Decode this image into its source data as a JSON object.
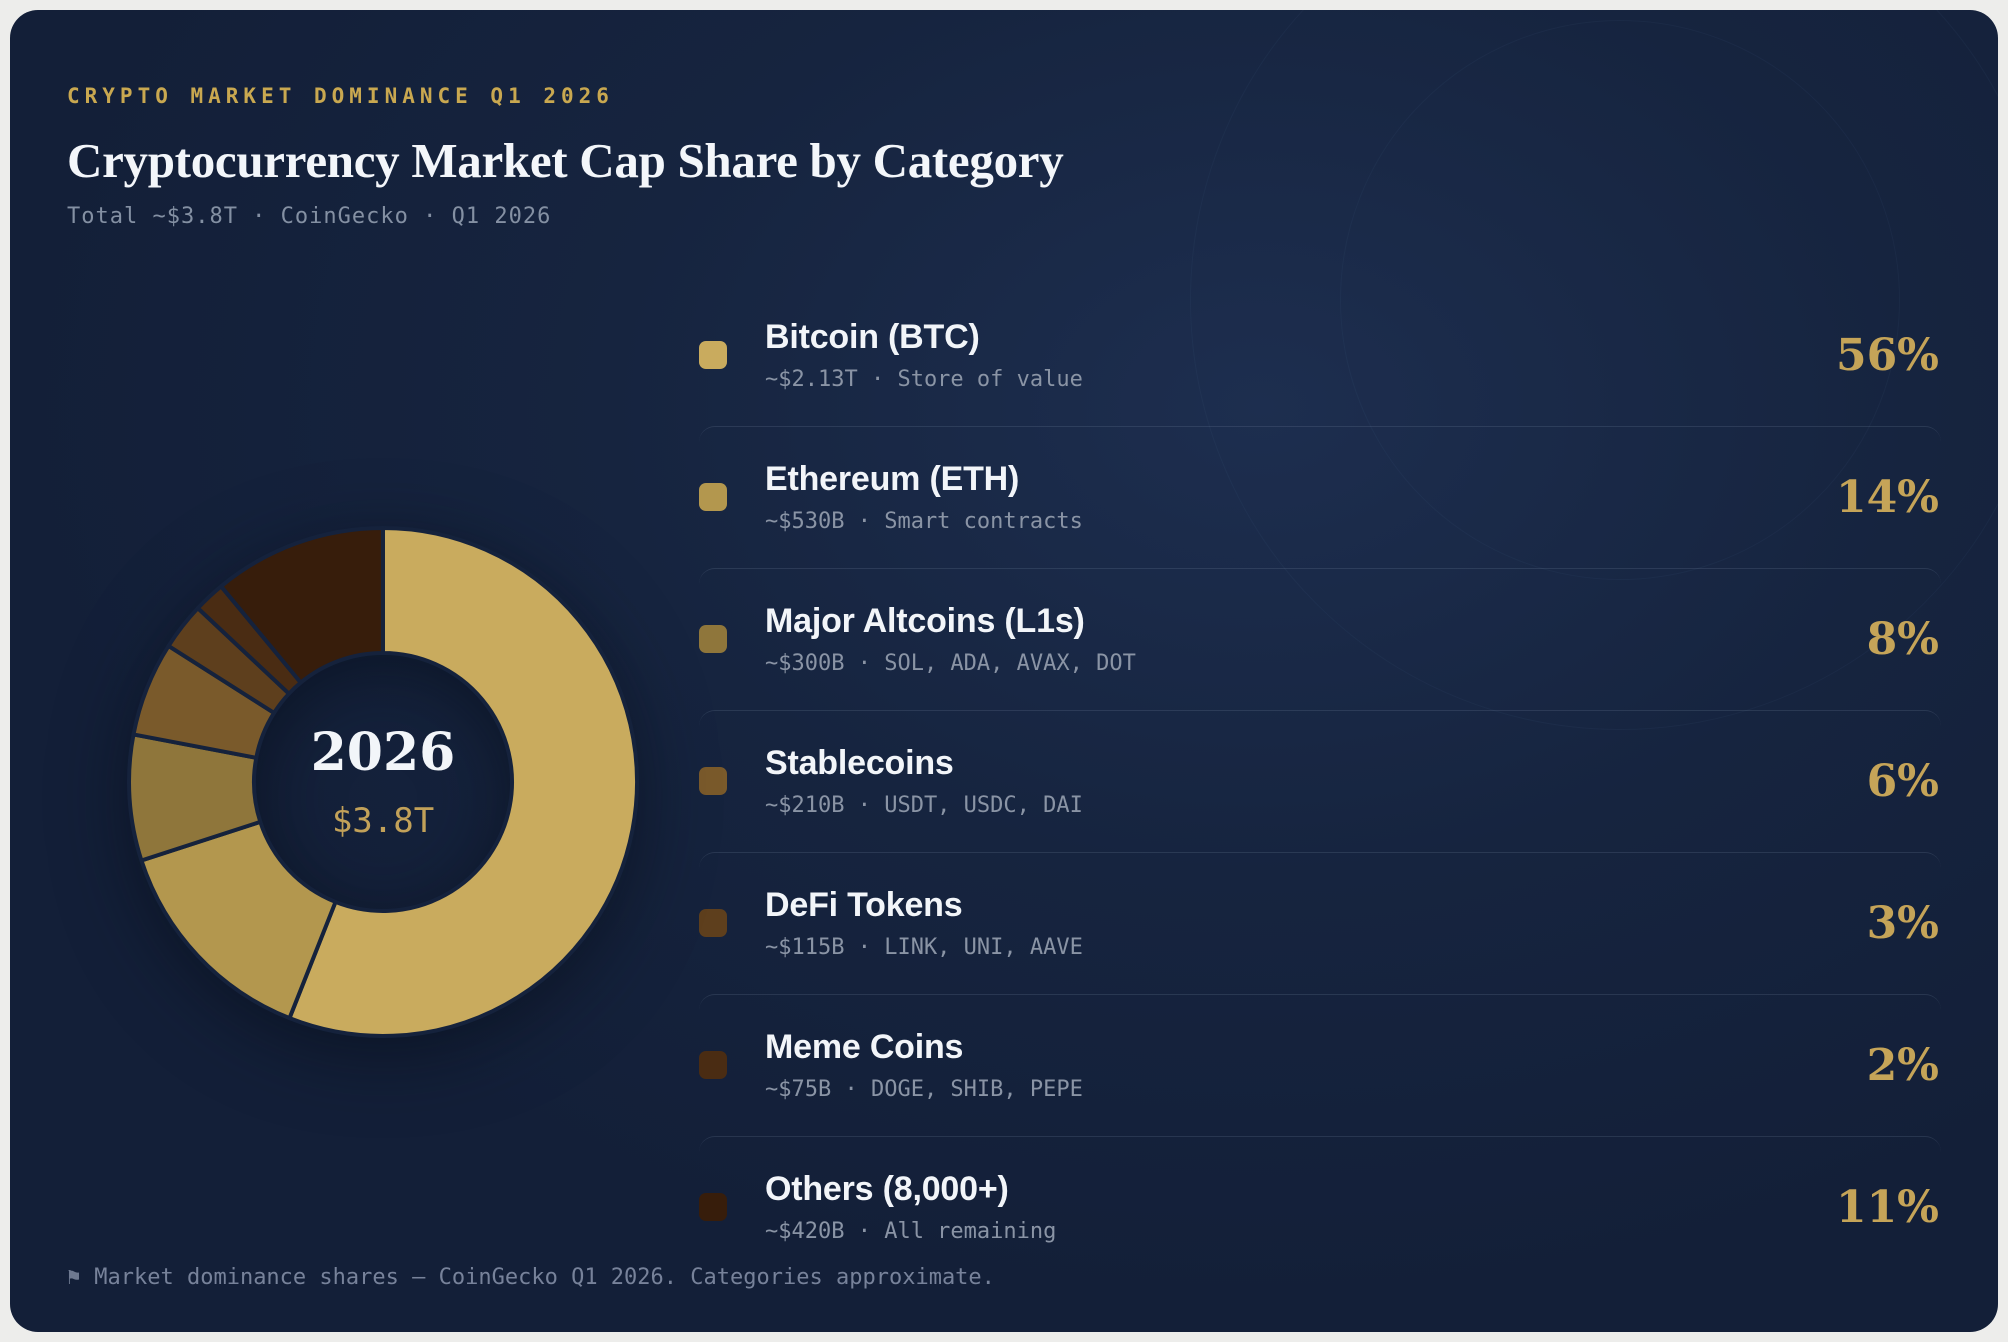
{
  "page": {
    "eyebrow": "CRYPTO MARKET DOMINANCE Q1 2026",
    "title": "Cryptocurrency Market Cap Share by Category",
    "subtitle": "Total ~$3.8T · CoinGecko · Q1 2026",
    "footnote_icon": "⚑",
    "footnote": "Market dominance shares — CoinGecko Q1 2026. Categories approximate."
  },
  "donut": {
    "center_year": "2026",
    "center_total": "$3.8T"
  },
  "colors": {
    "accent_gold": "#C6A557",
    "card_background": "#15223C",
    "page_background": "#EDEDEB",
    "segment_gap": "#15223C",
    "text_primary": "#F2F5F9",
    "text_muted": "#8A94A5"
  },
  "chart_data": {
    "type": "pie",
    "title": "Cryptocurrency Market Cap Share by Category",
    "subtitle": "Total ~$3.8T · CoinGecko · Q1 2026",
    "total_label": "$3.8T",
    "year_label": "2026",
    "source": "CoinGecko",
    "period": "Q1 2026",
    "donut": true,
    "start_angle_deg": 0,
    "direction": "clockwise",
    "legend_position": "right",
    "categories": [
      "Bitcoin (BTC)",
      "Ethereum (ETH)",
      "Major Altcoins (L1s)",
      "Stablecoins",
      "DeFi Tokens",
      "Meme Coins",
      "Others (8,000+)"
    ],
    "values": [
      56,
      14,
      8,
      6,
      3,
      2,
      11
    ],
    "segments": [
      {
        "label": "Bitcoin (BTC)",
        "percent": 56,
        "percent_label": "56%",
        "detail": "~$2.13T · Store of value",
        "color": "#C9AB5E"
      },
      {
        "label": "Ethereum (ETH)",
        "percent": 14,
        "percent_label": "14%",
        "detail": "~$530B · Smart contracts",
        "color": "#B3974E"
      },
      {
        "label": "Major Altcoins (L1s)",
        "percent": 8,
        "percent_label": "8%",
        "detail": "~$300B · SOL, ADA, AVAX, DOT",
        "color": "#8F763B"
      },
      {
        "label": "Stablecoins",
        "percent": 6,
        "percent_label": "6%",
        "detail": "~$210B · USDT, USDC, DAI",
        "color": "#7A5A2B"
      },
      {
        "label": "DeFi Tokens",
        "percent": 3,
        "percent_label": "3%",
        "detail": "~$115B · LINK, UNI, AAVE",
        "color": "#5E3F1D"
      },
      {
        "label": "Meme Coins",
        "percent": 2,
        "percent_label": "2%",
        "detail": "~$75B · DOGE, SHIB, PEPE",
        "color": "#4A2C13"
      },
      {
        "label": "Others (8,000+)",
        "percent": 11,
        "percent_label": "11%",
        "detail": "~$420B · All remaining",
        "color": "#371D0B"
      }
    ]
  }
}
